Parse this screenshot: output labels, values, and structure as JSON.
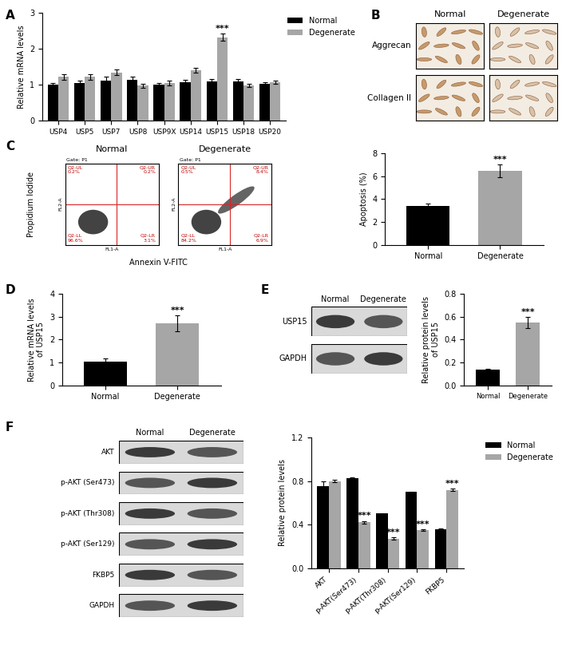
{
  "panel_labels": [
    "A",
    "B",
    "C",
    "D",
    "E",
    "F"
  ],
  "chart_data": [
    {
      "type": "bar",
      "categories": [
        "USP4",
        "USP5",
        "USP7",
        "USP8",
        "USP9X",
        "USP14",
        "USP15",
        "USP18",
        "USP20"
      ],
      "series": [
        {
          "name": "Normal",
          "color": "#000000",
          "values": [
            1.0,
            1.05,
            1.12,
            1.15,
            1.0,
            1.07,
            1.1,
            1.1,
            1.03
          ],
          "errors": [
            0.06,
            0.06,
            0.1,
            0.08,
            0.06,
            0.06,
            0.06,
            0.07,
            0.05
          ]
        },
        {
          "name": "Degenerate",
          "color": "#a6a6a6",
          "values": [
            1.22,
            1.22,
            1.35,
            0.98,
            1.05,
            1.4,
            2.33,
            0.98,
            1.07
          ],
          "errors": [
            0.07,
            0.07,
            0.08,
            0.06,
            0.06,
            0.07,
            0.1,
            0.05,
            0.05
          ]
        }
      ],
      "y_label": "Relative mRNA levels",
      "ylim": [
        0,
        3
      ],
      "yticks": [
        0,
        1,
        2,
        3
      ],
      "legend": "upper right",
      "annotations": [
        {
          "text": "***",
          "category": "USP15",
          "series": "Degenerate"
        }
      ]
    },
    {
      "type": "bar",
      "categories": [
        "Normal",
        "Degenerate"
      ],
      "values": [
        3.4,
        6.5
      ],
      "errors": [
        0.25,
        0.55
      ],
      "colors": [
        "#000000",
        "#a6a6a6"
      ],
      "y_label": "Apoptosis (%)",
      "ylim": [
        0,
        8
      ],
      "yticks": [
        0,
        2,
        4,
        6,
        8
      ],
      "annotations": [
        {
          "text": "***",
          "category": "Degenerate"
        }
      ]
    },
    {
      "type": "bar",
      "categories": [
        "Normal",
        "Degenerate"
      ],
      "values": [
        1.02,
        2.72
      ],
      "errors": [
        0.15,
        0.35
      ],
      "colors": [
        "#000000",
        "#a6a6a6"
      ],
      "y_label": "Relative mRNA levels\nof USP15",
      "ylim": [
        0,
        4
      ],
      "yticks": [
        0,
        1,
        2,
        3,
        4
      ],
      "annotations": [
        {
          "text": "***",
          "category": "Degenerate"
        }
      ]
    },
    {
      "type": "bar",
      "categories": [
        "Normal",
        "Degenerate"
      ],
      "values": [
        0.14,
        0.55
      ],
      "errors": [
        0.005,
        0.05
      ],
      "colors": [
        "#000000",
        "#a6a6a6"
      ],
      "y_label": "Relative protein levels\nof USP15",
      "ylim": [
        0.0,
        0.8
      ],
      "yticks": [
        0.0,
        0.2,
        0.4,
        0.6,
        0.8
      ],
      "annotations": [
        {
          "text": "***",
          "category": "Degenerate"
        }
      ]
    },
    {
      "type": "bar",
      "categories": [
        "AKT",
        "p-AKT(Ser473)",
        "p-AKT(Thr308)",
        "p-AKT(Ser129)",
        "FKBP5"
      ],
      "series": [
        {
          "name": "Normal",
          "color": "#000000",
          "values": [
            0.75,
            0.83,
            0.5,
            0.7,
            0.36
          ],
          "errors": [
            0.05,
            0.005,
            0.005,
            0.005,
            0.005
          ]
        },
        {
          "name": "Degenerate",
          "color": "#a6a6a6",
          "values": [
            0.8,
            0.42,
            0.27,
            0.35,
            0.72
          ],
          "errors": [
            0.01,
            0.01,
            0.01,
            0.005,
            0.01
          ]
        }
      ],
      "y_label": "Relative protein levels",
      "ylim": [
        0.0,
        1.2
      ],
      "yticks": [
        0.0,
        0.4,
        0.8,
        1.2
      ],
      "legend": "upper right",
      "annotations": [
        {
          "text": "***",
          "category": "p-AKT(Ser473)",
          "series": "Degenerate"
        },
        {
          "text": "***",
          "category": "p-AKT(Thr308)",
          "series": "Degenerate"
        },
        {
          "text": "***",
          "category": "p-AKT(Ser129)",
          "series": "Degenerate"
        },
        {
          "text": "***",
          "category": "FKBP5",
          "series": "Degenerate"
        }
      ]
    }
  ],
  "micrographs": {
    "columns": [
      "Normal",
      "Degenerate"
    ],
    "rows": [
      "Aggrecan",
      "Collagen II"
    ]
  },
  "flow_cytometry": {
    "x_label": "Annexin V-FITC",
    "y_label": "Propidium Iodide",
    "x_channel": "FL1-A",
    "y_channel": "FL2-A",
    "gate": "Gate: P1",
    "plots": [
      {
        "title": "Normal",
        "quadrants": {
          "UL": {
            "name": "Q2-UL",
            "percent": "0.2%"
          },
          "UR": {
            "name": "Q2-UR",
            "percent": "0.2%"
          },
          "LL": {
            "name": "Q2-LL",
            "percent": "96.6%"
          },
          "LR": {
            "name": "Q2-LR",
            "percent": "3.1%"
          }
        }
      },
      {
        "title": "Degenerate",
        "quadrants": {
          "UL": {
            "name": "Q2-UL",
            "percent": "0.5%"
          },
          "UR": {
            "name": "Q2-UR",
            "percent": "8.4%"
          },
          "LL": {
            "name": "Q2-LL",
            "percent": "84.2%"
          },
          "LR": {
            "name": "Q2-LR",
            "percent": "6.9%"
          }
        }
      }
    ]
  },
  "blots": {
    "E": {
      "columns": [
        "Normal",
        "Degenerate"
      ],
      "rows": [
        "USP15",
        "GAPDH"
      ]
    },
    "F": {
      "columns": [
        "Normal",
        "Degenerate"
      ],
      "rows": [
        "AKT",
        "p-AKT (Ser473)",
        "p-AKT (Thr308)",
        "p-AKT (Ser129)",
        "FKBP5",
        "GAPDH"
      ]
    }
  }
}
